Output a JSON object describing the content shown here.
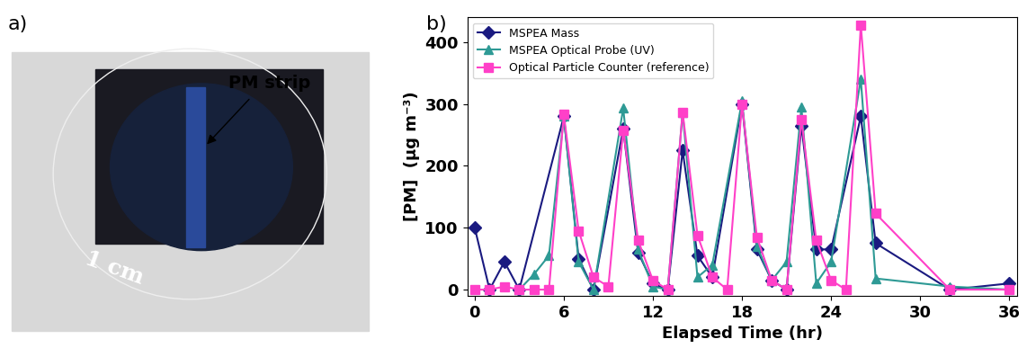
{
  "photo": {
    "panel_label": "a)",
    "strip_label": "PM strip",
    "scale_label": "1 cm"
  },
  "chart_data": {
    "type": "line",
    "title": "b)",
    "x_label": "Elapsed Time (hr)",
    "y_label": "[PM]  (µg m⁻³)",
    "xlim": [
      -0.5,
      36.5
    ],
    "xticks": [
      0,
      6,
      12,
      18,
      24,
      30,
      36
    ],
    "ylim": [
      -10,
      440
    ],
    "yticks": [
      0,
      100,
      200,
      300,
      400
    ],
    "legend": "upper left",
    "series": [
      {
        "name": "MSPEA Mass",
        "color": "#1a1a80",
        "marker": "D",
        "line_style": "solid",
        "x": [
          0,
          1,
          2,
          3,
          6,
          7,
          8,
          10,
          11,
          12,
          13,
          14,
          15,
          16,
          18,
          19,
          20,
          21,
          22,
          23,
          24,
          26,
          27,
          32,
          36
        ],
        "values": [
          100,
          0,
          45,
          0,
          280,
          50,
          0,
          260,
          60,
          10,
          0,
          225,
          55,
          20,
          300,
          65,
          15,
          0,
          265,
          65,
          65,
          280,
          75,
          0,
          10
        ]
      },
      {
        "name": "MSPEA Optical Probe (UV)",
        "color": "#2e9a95",
        "marker": "^",
        "line_style": "solid",
        "x": [
          3,
          4,
          5,
          6,
          7,
          8,
          10,
          11,
          12,
          13,
          14,
          15,
          16,
          18,
          19,
          20,
          21,
          22,
          23,
          24,
          26,
          27,
          32,
          36
        ],
        "values": [
          0,
          25,
          55,
          280,
          45,
          0,
          293,
          65,
          5,
          0,
          287,
          20,
          40,
          305,
          70,
          15,
          45,
          295,
          10,
          45,
          340,
          18,
          5,
          0
        ]
      },
      {
        "name": "Optical Particle Counter (reference)",
        "color": "#ff40c8",
        "marker": "s",
        "line_style": "solid",
        "x": [
          0,
          1,
          2,
          3,
          4,
          5,
          6,
          7,
          8,
          9,
          10,
          11,
          12,
          13,
          14,
          15,
          16,
          17,
          18,
          19,
          20,
          21,
          22,
          23,
          24,
          25,
          26,
          27,
          32,
          36
        ],
        "values": [
          0,
          0,
          5,
          0,
          0,
          0,
          283,
          95,
          20,
          5,
          258,
          80,
          15,
          0,
          287,
          88,
          20,
          0,
          300,
          85,
          15,
          0,
          275,
          80,
          15,
          0,
          428,
          123,
          0,
          0
        ]
      }
    ]
  }
}
